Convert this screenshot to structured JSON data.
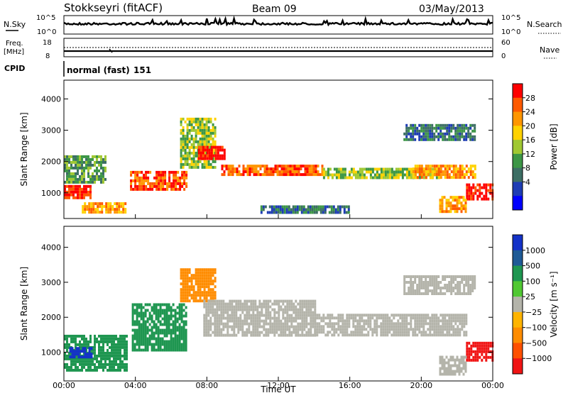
{
  "header": {
    "station": "Stokkseyri (fitACF)",
    "beam": "Beam 09",
    "date": "03/May/2013"
  },
  "panels": {
    "nsky": {
      "label": "N.Sky",
      "left_ticks": [
        "10^5",
        "10^0"
      ],
      "right_ticks": [
        "10^5",
        "10^0"
      ],
      "right_label": "N.Search"
    },
    "freq": {
      "label_line1": "Freq.",
      "label_line2": "[MHz]",
      "left_ticks": [
        "18",
        "8"
      ],
      "right_ticks": [
        "60",
        "0"
      ],
      "right_label": "Nave"
    },
    "cpid": {
      "label": "CPID",
      "mode": "normal (fast)",
      "id": "151"
    }
  },
  "colorbars": {
    "power": {
      "label": "Power [dB]",
      "ticks": [
        "28",
        "24",
        "20",
        "16",
        "12",
        "8",
        "4"
      ],
      "colors": [
        "#ff0000",
        "#ff5a00",
        "#ff9600",
        "#ffd200",
        "#a0c832",
        "#3c9646",
        "#3c6e64",
        "#1e3cb4",
        "#0000ff"
      ]
    },
    "velocity": {
      "label": "Velocity [m s⁻¹]",
      "ticks": [
        "1000",
        "500",
        "100",
        "25",
        "−25",
        "−100",
        "−500",
        "−1000"
      ],
      "colors": [
        "#1432c8",
        "#1e5a96",
        "#1e9650",
        "#50c832",
        "#b4b4aa",
        "#ffb400",
        "#ff8c00",
        "#ff5000",
        "#f01414"
      ]
    }
  },
  "chart_data": {
    "type": "heatmap",
    "xlabel": "Time UT",
    "x_ticks": [
      "00:00",
      "04:00",
      "08:00",
      "12:00",
      "16:00",
      "20:00",
      "00:00"
    ],
    "ylabel": "Slant Range [km]",
    "y_ticks": [
      "4000",
      "3000",
      "2000",
      "1000"
    ],
    "xlim_hours": [
      0,
      24
    ],
    "ylim_km": [
      180,
      4600
    ],
    "power_echoes": [
      {
        "t0": 0.0,
        "t1": 1.5,
        "r0": 800,
        "r1": 1250,
        "level": 0
      },
      {
        "t0": 0.0,
        "t1": 2.3,
        "r0": 1300,
        "r1": 2200,
        "level": 5
      },
      {
        "t0": 1.0,
        "t1": 3.5,
        "r0": 400,
        "r1": 700,
        "level": 2
      },
      {
        "t0": 3.7,
        "t1": 6.8,
        "r0": 1100,
        "r1": 1700,
        "level": 1
      },
      {
        "t0": 6.5,
        "t1": 8.5,
        "r0": 1800,
        "r1": 3400,
        "level": 4
      },
      {
        "t0": 7.5,
        "t1": 9.0,
        "r0": 2100,
        "r1": 2500,
        "level": 0
      },
      {
        "t0": 8.8,
        "t1": 14.5,
        "r0": 1600,
        "r1": 1900,
        "level": 1
      },
      {
        "t0": 14.5,
        "t1": 21.0,
        "r0": 1450,
        "r1": 1800,
        "level": 4
      },
      {
        "t0": 19.5,
        "t1": 23.0,
        "r0": 1500,
        "r1": 1900,
        "level": 2
      },
      {
        "t0": 22.5,
        "t1": 24.0,
        "r0": 800,
        "r1": 1300,
        "level": 0
      },
      {
        "t0": 21.0,
        "t1": 22.5,
        "r0": 400,
        "r1": 900,
        "level": 2
      },
      {
        "t0": 19.0,
        "t1": 23.0,
        "r0": 2700,
        "r1": 3200,
        "level": 6
      },
      {
        "t0": 11.0,
        "t1": 16.0,
        "r0": 400,
        "r1": 600,
        "level": 6
      }
    ],
    "velocity_echoes": [
      {
        "t0": 0.0,
        "t1": 3.5,
        "r0": 500,
        "r1": 1500,
        "level": 2
      },
      {
        "t0": 0.3,
        "t1": 1.5,
        "r0": 850,
        "r1": 1150,
        "level": 0
      },
      {
        "t0": 3.8,
        "t1": 6.8,
        "r0": 1100,
        "r1": 2400,
        "level": 2
      },
      {
        "t0": 6.5,
        "t1": 8.5,
        "r0": 2500,
        "r1": 3400,
        "level": 6
      },
      {
        "t0": 7.8,
        "t1": 14.0,
        "r0": 1500,
        "r1": 2500,
        "level": 4
      },
      {
        "t0": 14.0,
        "t1": 22.5,
        "r0": 1500,
        "r1": 2100,
        "level": 4
      },
      {
        "t0": 22.5,
        "t1": 24.0,
        "r0": 800,
        "r1": 1300,
        "level": 8
      },
      {
        "t0": 21.0,
        "t1": 22.5,
        "r0": 400,
        "r1": 900,
        "level": 4
      },
      {
        "t0": 19.0,
        "t1": 23.0,
        "r0": 2700,
        "r1": 3200,
        "level": 4
      }
    ]
  }
}
